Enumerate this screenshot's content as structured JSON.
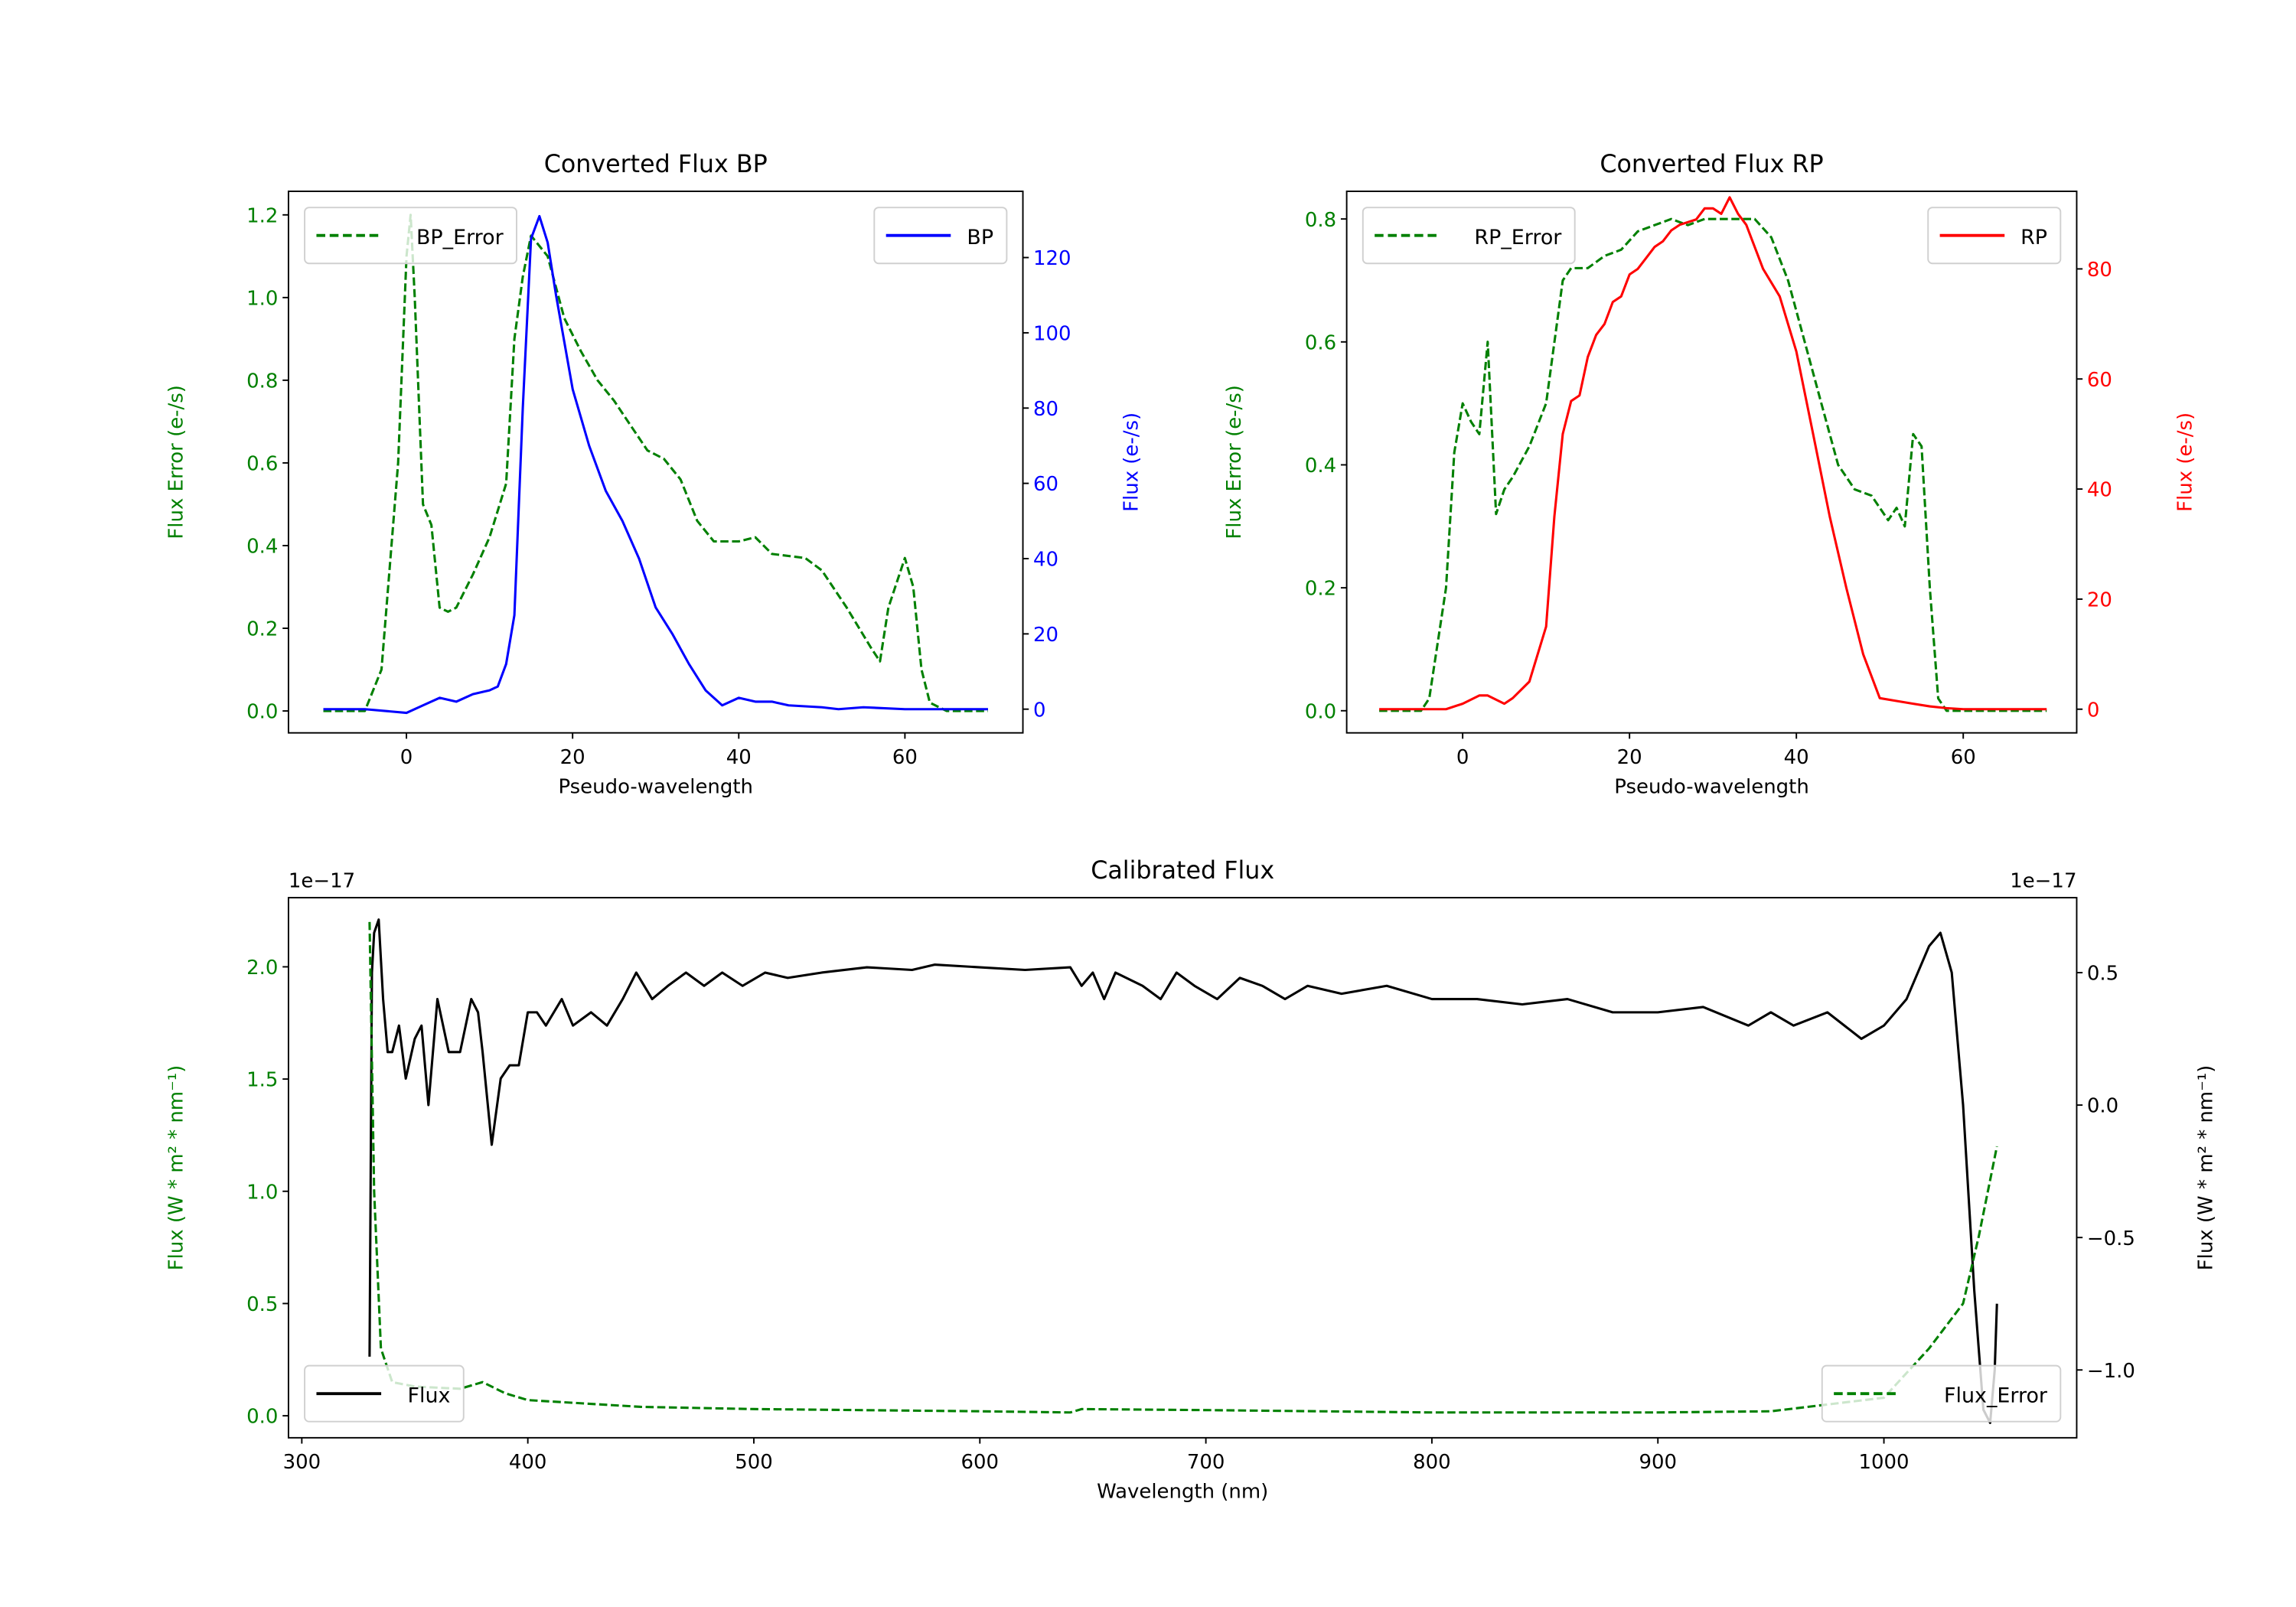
{
  "chart_data": [
    {
      "type": "line",
      "title": "Converted Flux BP",
      "xlabel": "Pseudo-wavelength",
      "ylabel_left": "Flux Error (e-/s)",
      "ylabel_right": "Flux (e-/s)",
      "xlim": [
        -14.2,
        74.2
      ],
      "ylim_left": [
        -0.053,
        1.257
      ],
      "ylim_right": [
        -6.3,
        137.6
      ],
      "xticks": [
        0,
        20,
        40,
        60
      ],
      "yticks_left": [
        "0.0",
        "0.2",
        "0.4",
        "0.6",
        "0.8",
        "1.0",
        "1.2"
      ],
      "yticks_right": [
        "0",
        "20",
        "40",
        "60",
        "80",
        "100",
        "120"
      ],
      "left_color": "#008000",
      "right_color": "#0000ff",
      "series": [
        {
          "name": "BP_Error",
          "axis": "left",
          "style": "dashed",
          "color": "#008000",
          "legend": "top-left",
          "x": [
            -10,
            -5,
            -3,
            -1,
            0,
            0.5,
            1,
            2,
            3,
            4,
            5,
            6,
            8,
            10,
            12,
            13,
            14,
            15,
            17,
            19,
            21,
            23,
            25,
            27,
            29,
            31,
            33,
            35,
            37,
            40,
            42,
            44,
            48,
            50,
            53,
            56,
            57,
            58,
            60,
            61,
            62,
            63,
            65,
            70
          ],
          "y": [
            0,
            0,
            0.1,
            0.6,
            1.1,
            1.2,
            1.0,
            0.5,
            0.45,
            0.25,
            0.24,
            0.25,
            0.33,
            0.42,
            0.55,
            0.9,
            1.05,
            1.15,
            1.1,
            0.95,
            0.87,
            0.8,
            0.75,
            0.69,
            0.63,
            0.61,
            0.56,
            0.46,
            0.41,
            0.41,
            0.42,
            0.38,
            0.37,
            0.34,
            0.25,
            0.15,
            0.12,
            0.25,
            0.37,
            0.3,
            0.1,
            0.02,
            0,
            0
          ]
        },
        {
          "name": "BP",
          "axis": "right",
          "style": "solid",
          "color": "#0000ff",
          "legend": "top-right",
          "x": [
            -10,
            -5,
            0,
            2,
            4,
            6,
            8,
            10,
            11,
            12,
            13,
            14,
            15,
            16,
            17,
            18,
            20,
            22,
            24,
            26,
            28,
            30,
            32,
            34,
            36,
            38,
            40,
            42,
            44,
            46,
            50,
            52,
            55,
            60,
            70
          ],
          "y": [
            0,
            0,
            -1,
            1,
            3,
            2,
            4,
            5,
            6,
            12,
            25,
            80,
            125,
            131,
            124,
            110,
            85,
            70,
            58,
            50,
            40,
            27,
            20,
            12,
            5,
            1,
            3,
            2,
            2,
            1,
            0.5,
            0,
            0.5,
            0,
            0
          ]
        }
      ]
    },
    {
      "type": "line",
      "title": "Converted Flux RP",
      "xlabel": "Pseudo-wavelength",
      "ylabel_left": "Flux Error (e-/s)",
      "ylabel_right": "Flux (e-/s)",
      "xlim": [
        -13.9,
        73.6
      ],
      "ylim_left": [
        -0.036,
        0.845
      ],
      "ylim_right": [
        -4.3,
        94.1
      ],
      "xticks": [
        0,
        20,
        40,
        60
      ],
      "yticks_left": [
        "0.0",
        "0.2",
        "0.4",
        "0.6",
        "0.8"
      ],
      "yticks_right": [
        "0",
        "20",
        "40",
        "60",
        "80"
      ],
      "left_color": "#008000",
      "right_color": "#ff0000",
      "series": [
        {
          "name": "RP_Error",
          "axis": "left",
          "style": "dashed",
          "color": "#008000",
          "legend": "top-left",
          "x": [
            -10,
            -5,
            -4,
            -2,
            -1,
            0,
            1,
            2,
            3,
            4,
            5,
            6,
            8,
            10,
            12,
            13,
            15,
            17,
            19,
            21,
            23,
            25,
            27,
            29,
            31,
            33,
            35,
            37,
            39,
            41,
            43,
            45,
            47,
            49,
            51,
            52,
            53,
            54,
            55,
            56,
            57,
            58,
            70
          ],
          "y": [
            0,
            0,
            0.02,
            0.2,
            0.42,
            0.5,
            0.47,
            0.45,
            0.6,
            0.32,
            0.36,
            0.38,
            0.43,
            0.5,
            0.7,
            0.72,
            0.72,
            0.74,
            0.75,
            0.78,
            0.79,
            0.8,
            0.79,
            0.8,
            0.8,
            0.8,
            0.8,
            0.77,
            0.7,
            0.6,
            0.5,
            0.4,
            0.36,
            0.35,
            0.31,
            0.33,
            0.3,
            0.45,
            0.43,
            0.2,
            0.02,
            0,
            0
          ]
        },
        {
          "name": "RP",
          "axis": "right",
          "style": "solid",
          "color": "#ff0000",
          "legend": "top-right",
          "x": [
            -10,
            -2,
            0,
            2,
            3,
            5,
            6,
            8,
            10,
            11,
            12,
            13,
            14,
            15,
            16,
            17,
            18,
            19,
            20,
            21,
            22,
            23,
            24,
            25,
            26,
            28,
            29,
            30,
            31,
            32,
            33,
            34,
            36,
            38,
            40,
            42,
            44,
            46,
            48,
            50,
            52,
            54,
            56,
            58,
            60,
            70
          ],
          "y": [
            0,
            0,
            1,
            2.5,
            2.5,
            1,
            2,
            5,
            15,
            35,
            50,
            56,
            57,
            64,
            68,
            70,
            74,
            75,
            79,
            80,
            82,
            84,
            85,
            87,
            88,
            89,
            91,
            91,
            90,
            93,
            90,
            88,
            80,
            75,
            65,
            50,
            35,
            22,
            10,
            2,
            1.5,
            1,
            0.5,
            0.2,
            0,
            0
          ]
        }
      ]
    },
    {
      "type": "line",
      "title": "Calibrated Flux",
      "xlabel": "Wavelength (nm)",
      "ylabel_left": "Flux (W * m² * nm⁻¹)",
      "ylabel_right": "Flux (W * m² * nm⁻¹)",
      "offset_left": "1e−17",
      "offset_right": "1e−17",
      "xlim": [
        294.1,
        1085.3
      ],
      "ylim_left": [
        -0.098,
        2.308
      ],
      "ylim_right": [
        -1.256,
        0.783
      ],
      "xticks": [
        300,
        400,
        500,
        600,
        700,
        800,
        900,
        1000
      ],
      "yticks_left": [
        "0.0",
        "0.5",
        "1.0",
        "1.5",
        "2.0"
      ],
      "yticks_right": [
        "−1.0",
        "−0.5",
        "0.0",
        "0.5"
      ],
      "left_color": "#008000",
      "right_color": "#000000",
      "series": [
        {
          "name": "Flux",
          "axis": "right",
          "style": "solid",
          "color": "#000000",
          "legend": "bottom-left",
          "x": [
            330,
            331,
            332,
            334,
            336,
            338,
            340,
            343,
            346,
            350,
            353,
            356,
            360,
            365,
            370,
            375,
            378,
            380,
            384,
            388,
            392,
            396,
            400,
            404,
            408,
            415,
            420,
            428,
            435,
            442,
            448,
            455,
            462,
            470,
            478,
            486,
            495,
            505,
            515,
            530,
            550,
            570,
            580,
            600,
            620,
            640,
            645,
            650,
            655,
            660,
            672,
            680,
            687,
            695,
            705,
            715,
            725,
            735,
            745,
            760,
            780,
            800,
            820,
            840,
            860,
            880,
            900,
            920,
            940,
            950,
            960,
            975,
            990,
            1000,
            1010,
            1020,
            1025,
            1030,
            1035,
            1040,
            1044,
            1047,
            1049,
            1050
          ],
          "y": [
            -0.95,
            0.5,
            0.65,
            0.7,
            0.4,
            0.2,
            0.2,
            0.3,
            0.1,
            0.25,
            0.3,
            0.0,
            0.4,
            0.2,
            0.2,
            0.4,
            0.35,
            0.2,
            -0.15,
            0.1,
            0.15,
            0.15,
            0.35,
            0.35,
            0.3,
            0.4,
            0.3,
            0.35,
            0.3,
            0.4,
            0.5,
            0.4,
            0.45,
            0.5,
            0.45,
            0.5,
            0.45,
            0.5,
            0.48,
            0.5,
            0.52,
            0.51,
            0.53,
            0.52,
            0.51,
            0.52,
            0.45,
            0.5,
            0.4,
            0.5,
            0.45,
            0.4,
            0.5,
            0.45,
            0.4,
            0.48,
            0.45,
            0.4,
            0.45,
            0.42,
            0.45,
            0.4,
            0.4,
            0.38,
            0.4,
            0.35,
            0.35,
            0.37,
            0.3,
            0.35,
            0.3,
            0.35,
            0.25,
            0.3,
            0.4,
            0.6,
            0.65,
            0.5,
            0,
            -0.7,
            -1.15,
            -1.2,
            -1.0,
            -0.75
          ]
        },
        {
          "name": "Flux_Error",
          "axis": "left",
          "style": "dashed",
          "color": "#008000",
          "legend": "bottom-right",
          "x": [
            330,
            332,
            335,
            340,
            350,
            370,
            380,
            390,
            400,
            450,
            500,
            600,
            640,
            645,
            700,
            800,
            900,
            950,
            1000,
            1020,
            1035,
            1042,
            1050
          ],
          "y": [
            2.2,
            1.0,
            0.3,
            0.15,
            0.13,
            0.12,
            0.15,
            0.1,
            0.07,
            0.04,
            0.03,
            0.02,
            0.015,
            0.03,
            0.025,
            0.015,
            0.015,
            0.02,
            0.08,
            0.3,
            0.5,
            0.8,
            1.2
          ]
        }
      ]
    }
  ]
}
